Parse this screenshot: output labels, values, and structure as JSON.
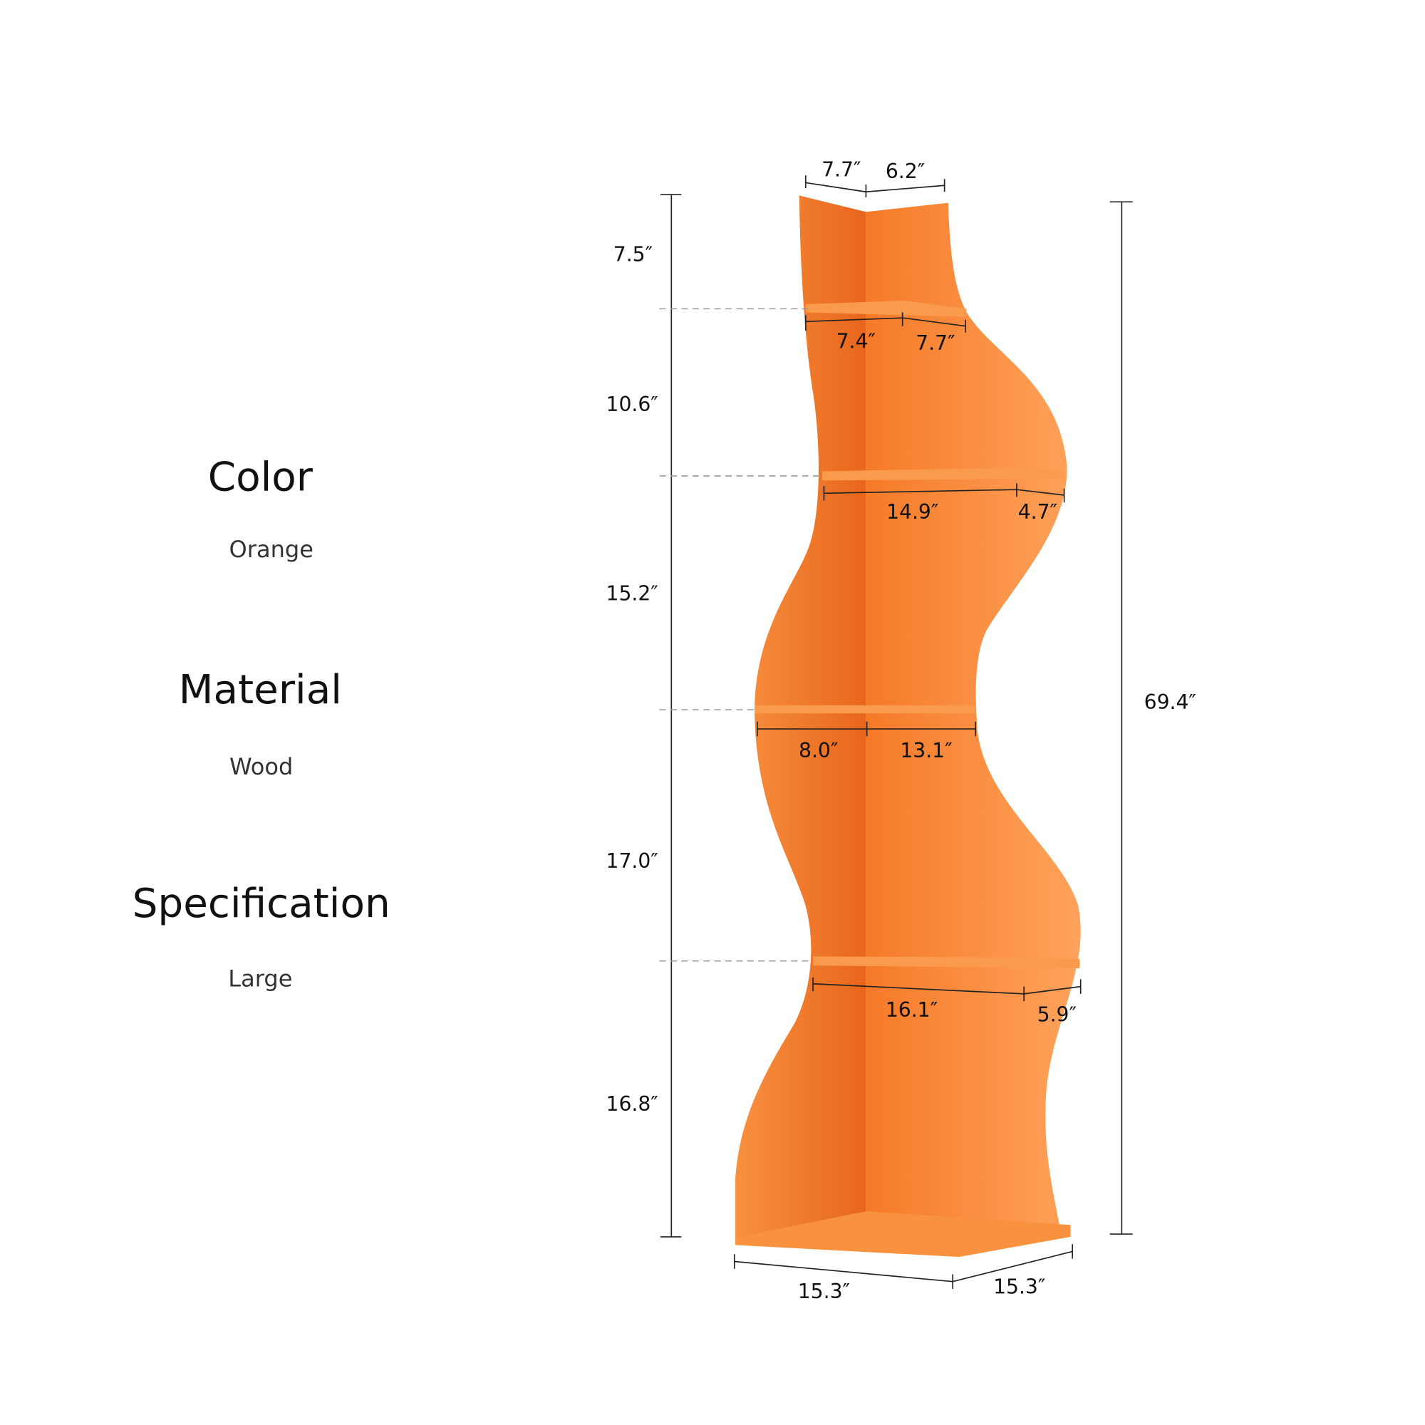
{
  "specs": [
    {
      "heading": "Color",
      "value": "Orange"
    },
    {
      "heading": "Material",
      "value": "Wood"
    },
    {
      "heading": "Specification",
      "value": "Large"
    }
  ],
  "product": {
    "color": "#F57C2A",
    "dimensions": {
      "top_left_depth": "7.7″",
      "top_right_depth": "6.2″",
      "total_height": "69.4″",
      "section_heights": [
        "7.5″",
        "10.6″",
        "15.2″",
        "17.0″",
        "16.8″"
      ],
      "shelf1": [
        "7.4″",
        "7.7″"
      ],
      "shelf2": [
        "14.9″",
        "4.7″"
      ],
      "shelf3": [
        "8.0″",
        "13.1″"
      ],
      "shelf4": [
        "16.1″",
        "5.9″"
      ],
      "base": [
        "15.3″",
        "15.3″"
      ]
    }
  }
}
